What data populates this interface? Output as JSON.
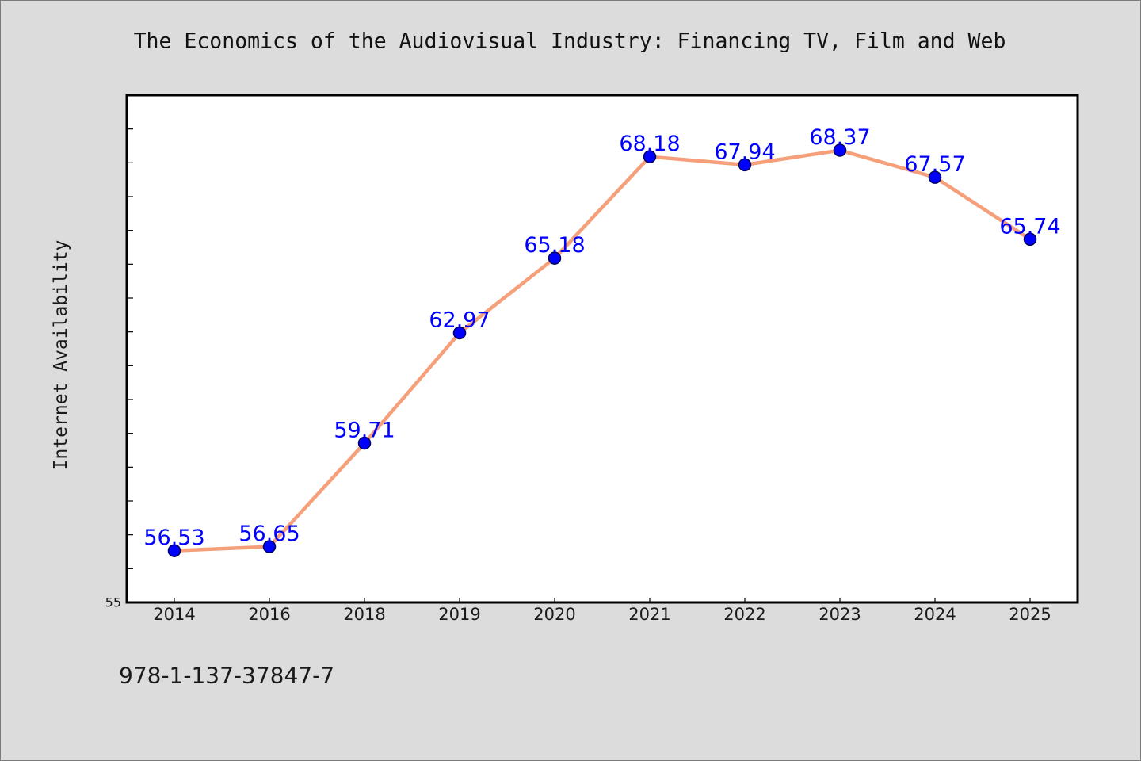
{
  "footer_text": "978-1-137-37847-7",
  "colors": {
    "page_background": "#dcdcdc",
    "page_border": "#7a7a7a",
    "plot_background": "#ffffff",
    "plot_frame": "#000000",
    "line": "#f5a07a",
    "marker": "#0000ff",
    "marker_edge": "#00005a",
    "data_label": "#0000ff"
  },
  "chart_data": {
    "type": "line",
    "title": "The Economics of the Audiovisual Industry: Financing TV, Film and Web",
    "ylabel": "Internet Availability",
    "categories": [
      "2014",
      "2016",
      "2018",
      "2019",
      "2020",
      "2021",
      "2022",
      "2023",
      "2024",
      "2025"
    ],
    "series": [
      {
        "values": [
          56.53,
          56.65,
          59.71,
          62.97,
          65.18,
          68.18,
          67.94,
          68.37,
          67.57,
          65.74
        ]
      }
    ],
    "ylim": [
      55,
      70
    ],
    "y_ticks": [
      55,
      56,
      57,
      58,
      59,
      60,
      61,
      62,
      63,
      64,
      65,
      66,
      67,
      68,
      69
    ],
    "y_tick_labels": [
      {
        "value": 55,
        "label": "55"
      }
    ],
    "data_labels": true,
    "grid": false,
    "legend": false
  }
}
